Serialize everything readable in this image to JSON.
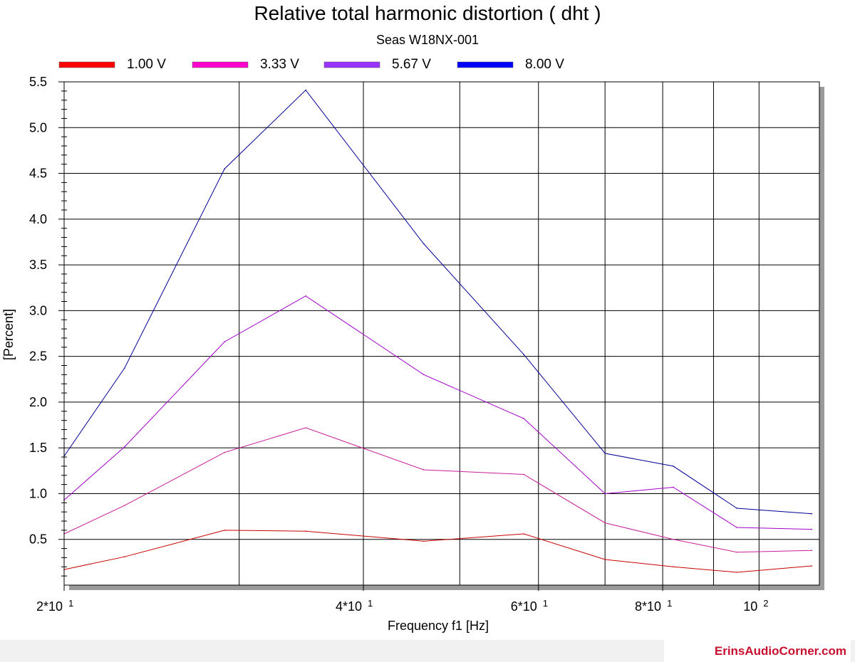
{
  "chart_data": {
    "type": "line",
    "title": "Relative total harmonic distortion  ( dht )",
    "subtitle": "Seas W18NX-001",
    "xlabel": "Frequency f1  [Hz]",
    "ylabel": "[Percent]",
    "x_scale": "log",
    "xlim": [
      20,
      115
    ],
    "ylim": [
      0,
      5.5
    ],
    "x_major_ticks": [
      {
        "value": 20,
        "base": "2*10",
        "exp": "1"
      },
      {
        "value": 40,
        "base": "4*10",
        "exp": "1"
      },
      {
        "value": 60,
        "base": "6*10",
        "exp": "1"
      },
      {
        "value": 80,
        "base": "8*10",
        "exp": "1"
      },
      {
        "value": 100,
        "base": "10",
        "exp": "2"
      }
    ],
    "x_grid": [
      30,
      40,
      50,
      60,
      70,
      80,
      90,
      100
    ],
    "y_ticks": [
      "0.5",
      "1.0",
      "1.5",
      "2.0",
      "2.5",
      "3.0",
      "3.5",
      "4.0",
      "4.5",
      "5.0",
      "5.5"
    ],
    "legend_position": "top",
    "grid": true,
    "x": [
      20,
      23,
      29,
      35,
      46,
      58,
      70,
      82,
      95,
      113
    ],
    "series": [
      {
        "name": "1.00 V",
        "color": "#ff0000",
        "line_color": "#c80000",
        "values": [
          0.17,
          0.31,
          0.6,
          0.59,
          0.48,
          0.56,
          0.28,
          0.2,
          0.14,
          0.21
        ]
      },
      {
        "name": "3.33 V",
        "color": "#ff00cc",
        "line_color": "#c81e96",
        "values": [
          0.56,
          0.87,
          1.45,
          1.72,
          1.26,
          1.21,
          0.68,
          0.5,
          0.36,
          0.38
        ]
      },
      {
        "name": "5.67 V",
        "color": "#9933ff",
        "line_color": "#a000c8",
        "values": [
          0.93,
          1.51,
          2.66,
          3.16,
          2.3,
          1.82,
          1.0,
          1.07,
          0.63,
          0.61
        ]
      },
      {
        "name": "8.00 V",
        "color": "#0000ff",
        "line_color": "#000096",
        "values": [
          1.41,
          2.37,
          4.55,
          5.41,
          3.73,
          2.52,
          1.44,
          1.3,
          0.84,
          0.78
        ]
      }
    ]
  },
  "footer": {
    "brand": "ErinsAudioCorner.com"
  }
}
